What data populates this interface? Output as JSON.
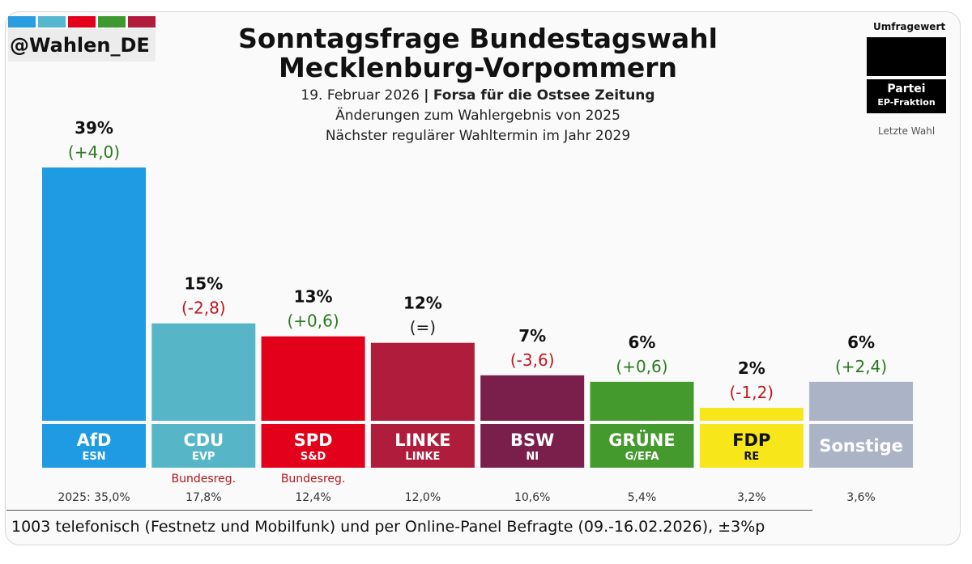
{
  "header": {
    "handle": "@Wahlen_DE",
    "title_line1": "Sonntagsfrage Bundestagswahl",
    "title_line2": "Mecklenburg-Vorpommern",
    "date": "19. Februar 2026",
    "separator": "|",
    "source": "Forsa für die Ostsee Zeitung",
    "changes_note": "Änderungen zum Wahlergebnis von 2025",
    "next_election": "Nächster regulärer Wahltermin im Jahr 2029"
  },
  "legend": {
    "values_label": "Umfragewert",
    "party_label": "Partei",
    "ep_label": "EP-Fraktion",
    "last_label": "Letzte Wahl"
  },
  "brand_colors": [
    "#2a9fe0",
    "#56b8d0",
    "#e2001a",
    "#3e9a30",
    "#b31b3c"
  ],
  "chart_data": {
    "type": "bar",
    "title": "Sonntagsfrage Bundestagswahl Mecklenburg-Vorpommern",
    "categories": [
      "AfD",
      "CDU",
      "SPD",
      "LINKE",
      "BSW",
      "GRÜNE",
      "FDP",
      "Sonstige"
    ],
    "values": [
      39,
      15,
      13,
      12,
      7,
      6,
      2,
      6
    ],
    "value_labels": [
      "39%",
      "15%",
      "13%",
      "12%",
      "7%",
      "6%",
      "2%",
      "6%"
    ],
    "changes": [
      "(+4,0)",
      "(-2,8)",
      "(+0,6)",
      "(=)",
      "(-3,6)",
      "(+0,6)",
      "(-1,2)",
      "(+2,4)"
    ],
    "change_colors": [
      "#2a7a1e",
      "#c0161d",
      "#2a7a1e",
      "#222222",
      "#c0161d",
      "#2a7a1e",
      "#c0161d",
      "#2a7a1e"
    ],
    "ep_groups": [
      "ESN",
      "EVP",
      "S&D",
      "LINKE",
      "NI",
      "G/EFA",
      "RE",
      ""
    ],
    "notes": [
      "",
      "Bundesreg.",
      "Bundesreg.",
      "",
      "",
      "",
      "",
      ""
    ],
    "last_election": [
      "2025: 35,0%",
      "17,8%",
      "12,4%",
      "12,0%",
      "10,6%",
      "5,4%",
      "3,2%",
      "3,6%"
    ],
    "colors": [
      "#1e9be3",
      "#56b6c8",
      "#e2001a",
      "#b01c3c",
      "#7a1f4c",
      "#459a2e",
      "#f6e61a",
      "#aab4c6"
    ],
    "label_colors": [
      "#ffffff",
      "#ffffff",
      "#ffffff",
      "#ffffff",
      "#ffffff",
      "#ffffff",
      "#111111",
      "#ffffff"
    ],
    "ylim": [
      0,
      40
    ],
    "xlabel": "",
    "ylabel": ""
  },
  "footer": {
    "note": "1003 telefonisch (Festnetz und Mobilfunk) und per Online-Panel Befragte (09.-16.02.2026), ±3%p"
  }
}
